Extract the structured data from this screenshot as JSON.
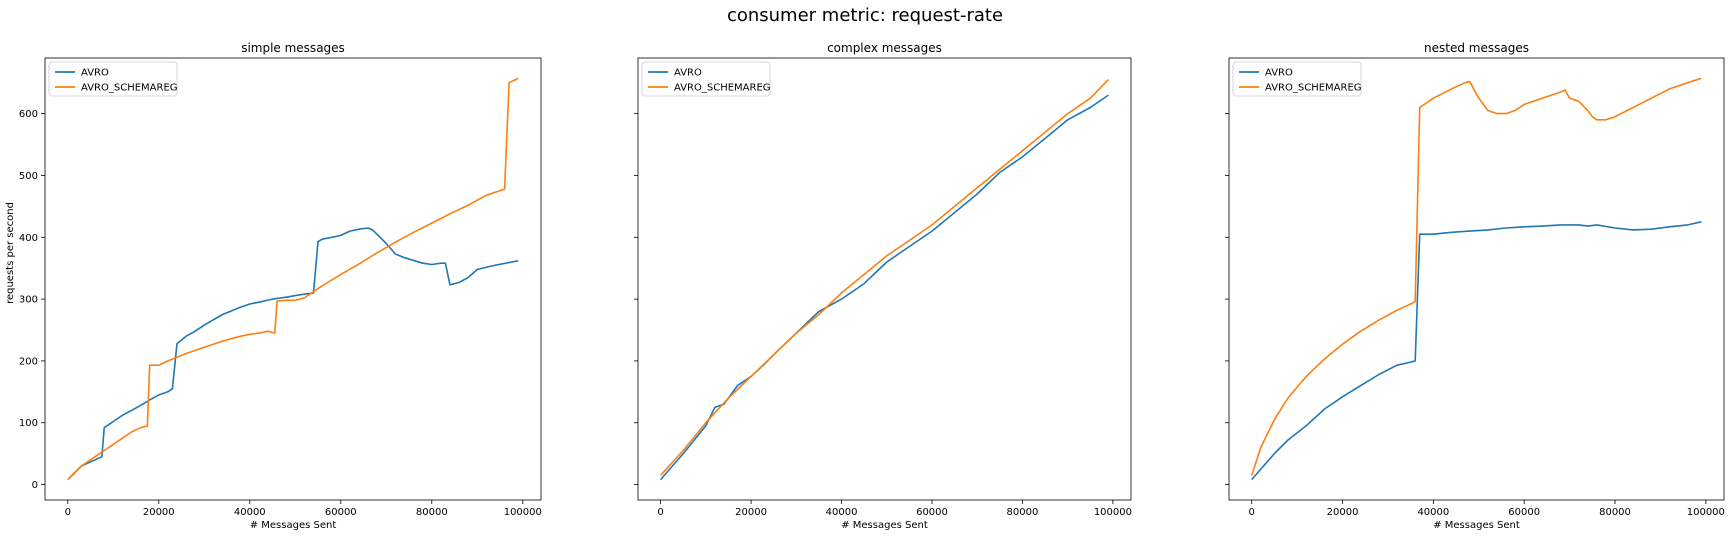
{
  "figure": {
    "title": "consumer metric: request-rate",
    "ylabel": "requests per second"
  },
  "colors": {
    "AVRO": "#1f77b4",
    "AVRO_SCHEMAREG": "#ff7f0e"
  },
  "chart_data": [
    {
      "type": "line",
      "title": "simple messages",
      "xlabel": "# Messages Sent",
      "ylabel": "requests per second",
      "xlim": [
        -5000,
        104000
      ],
      "ylim": [
        -25,
        690
      ],
      "xticks": [
        0,
        20000,
        40000,
        60000,
        80000,
        100000
      ],
      "yticks": [
        0,
        100,
        200,
        300,
        400,
        500,
        600
      ],
      "show_ytick_labels": true,
      "legend": "top-left",
      "grid": false,
      "series": [
        {
          "name": "AVRO",
          "x": [
            0,
            3000,
            6000,
            7500,
            8000,
            10000,
            12000,
            14000,
            16000,
            18000,
            20000,
            22000,
            23000,
            24000,
            26000,
            28000,
            30000,
            34000,
            38000,
            40000,
            42000,
            45000,
            48000,
            51000,
            54000,
            55000,
            56000,
            58000,
            60000,
            62000,
            64000,
            66000,
            67000,
            70000,
            72000,
            74000,
            78000,
            80000,
            82000,
            83000,
            84000,
            86000,
            88000,
            90000,
            94000,
            99000
          ],
          "y": [
            8,
            30,
            40,
            45,
            92,
            102,
            112,
            120,
            128,
            137,
            145,
            150,
            155,
            228,
            240,
            248,
            258,
            275,
            287,
            292,
            295,
            300,
            303,
            307,
            310,
            393,
            397,
            400,
            403,
            410,
            413,
            415,
            412,
            390,
            373,
            367,
            358,
            356,
            358,
            358,
            323,
            327,
            335,
            348,
            355,
            362
          ]
        },
        {
          "name": "AVRO_SCHEMAREG",
          "x": [
            0,
            3000,
            6000,
            8000,
            10000,
            12000,
            14000,
            16000,
            17500,
            18000,
            20000,
            22000,
            26000,
            30000,
            34000,
            38000,
            40000,
            42000,
            44000,
            45500,
            46000,
            48000,
            50000,
            52000,
            54000,
            56000,
            60000,
            64000,
            68000,
            72000,
            76000,
            80000,
            84000,
            88000,
            92000,
            96000,
            97000,
            99000
          ],
          "y": [
            8,
            30,
            45,
            55,
            65,
            75,
            85,
            92,
            95,
            193,
            193,
            200,
            212,
            222,
            232,
            240,
            243,
            245,
            248,
            245,
            297,
            298,
            298,
            302,
            312,
            322,
            340,
            357,
            375,
            392,
            408,
            423,
            438,
            452,
            468,
            478,
            650,
            657
          ]
        }
      ]
    },
    {
      "type": "line",
      "title": "complex messages",
      "xlabel": "# Messages Sent",
      "ylabel": "",
      "xlim": [
        -5000,
        104000
      ],
      "ylim": [
        -25,
        690
      ],
      "xticks": [
        0,
        20000,
        40000,
        60000,
        80000,
        100000
      ],
      "yticks": [
        0,
        100,
        200,
        300,
        400,
        500,
        600
      ],
      "show_ytick_labels": false,
      "legend": "top-left",
      "grid": false,
      "series": [
        {
          "name": "AVRO",
          "x": [
            0,
            5000,
            10000,
            12000,
            14000,
            17000,
            20000,
            23000,
            25000,
            30000,
            35000,
            40000,
            45000,
            50000,
            55000,
            60000,
            65000,
            70000,
            75000,
            80000,
            85000,
            90000,
            95000,
            99000
          ],
          "y": [
            8,
            50,
            95,
            125,
            130,
            160,
            175,
            195,
            210,
            245,
            280,
            300,
            325,
            360,
            385,
            410,
            440,
            470,
            505,
            530,
            560,
            590,
            610,
            630
          ]
        },
        {
          "name": "AVRO_SCHEMAREG",
          "x": [
            0,
            5000,
            10000,
            15000,
            20000,
            25000,
            30000,
            35000,
            40000,
            45000,
            50000,
            55000,
            60000,
            65000,
            70000,
            75000,
            80000,
            85000,
            90000,
            95000,
            99000
          ],
          "y": [
            15,
            55,
            100,
            140,
            175,
            210,
            245,
            275,
            310,
            340,
            370,
            395,
            420,
            450,
            480,
            510,
            540,
            570,
            600,
            625,
            655
          ]
        }
      ]
    },
    {
      "type": "line",
      "title": "nested messages",
      "xlabel": "# Messages Sent",
      "ylabel": "",
      "xlim": [
        -5000,
        104000
      ],
      "ylim": [
        -25,
        690
      ],
      "xticks": [
        0,
        20000,
        40000,
        60000,
        80000,
        100000
      ],
      "yticks": [
        0,
        100,
        200,
        300,
        400,
        500,
        600
      ],
      "show_ytick_labels": false,
      "legend": "top-left",
      "grid": false,
      "series": [
        {
          "name": "AVRO",
          "x": [
            0,
            2000,
            5000,
            8000,
            12000,
            16000,
            20000,
            24000,
            28000,
            32000,
            35000,
            36000,
            37000,
            40000,
            44000,
            48000,
            52000,
            56000,
            60000,
            64000,
            68000,
            72000,
            74000,
            76000,
            80000,
            84000,
            88000,
            92000,
            96000,
            99000
          ],
          "y": [
            8,
            25,
            50,
            72,
            95,
            122,
            142,
            160,
            178,
            193,
            198,
            200,
            405,
            405,
            408,
            410,
            412,
            415,
            417,
            418,
            420,
            420,
            418,
            420,
            415,
            412,
            413,
            417,
            420,
            425
          ]
        },
        {
          "name": "AVRO_SCHEMAREG",
          "x": [
            0,
            2000,
            5000,
            8000,
            12000,
            16000,
            20000,
            24000,
            28000,
            32000,
            35000,
            36000,
            37000,
            40000,
            44000,
            47000,
            48000,
            50000,
            52000,
            54000,
            56000,
            58000,
            60000,
            64000,
            68000,
            69000,
            70000,
            72000,
            74000,
            75000,
            76000,
            78000,
            80000,
            84000,
            88000,
            92000,
            96000,
            99000
          ],
          "y": [
            15,
            60,
            105,
            140,
            175,
            203,
            227,
            248,
            266,
            282,
            292,
            296,
            610,
            625,
            640,
            650,
            652,
            625,
            605,
            600,
            600,
            605,
            615,
            625,
            635,
            638,
            625,
            620,
            605,
            595,
            590,
            590,
            595,
            610,
            625,
            640,
            650,
            657
          ]
        }
      ]
    }
  ]
}
